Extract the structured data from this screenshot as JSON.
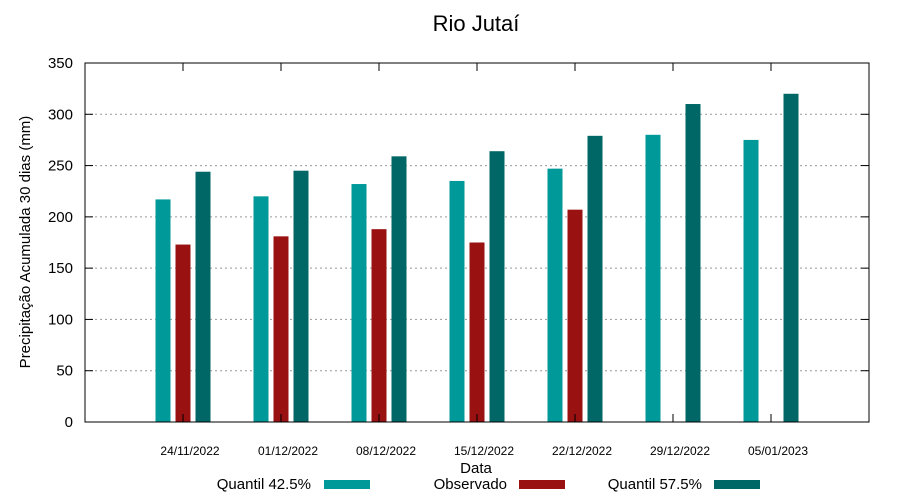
{
  "chart_data": {
    "type": "bar",
    "title": "Rio Jutaí",
    "xlabel": "Data",
    "ylabel": "Precipitação Acumulada 30 dias (mm)",
    "ylim": [
      0,
      350
    ],
    "yticks": [
      0,
      50,
      100,
      150,
      200,
      250,
      300,
      350
    ],
    "grid": true,
    "legend_position": "bottom",
    "categories": [
      "24/11/2022",
      "01/12/2022",
      "08/12/2022",
      "15/12/2022",
      "22/12/2022",
      "29/12/2022",
      "05/01/2023"
    ],
    "series": [
      {
        "name": "Quantil 42.5%",
        "color": "#009999",
        "values": [
          217,
          220,
          232,
          235,
          247,
          280,
          275
        ]
      },
      {
        "name": "Observado",
        "color": "#991111",
        "values": [
          173,
          181,
          188,
          175,
          207,
          null,
          null
        ]
      },
      {
        "name": "Quantil 57.5%",
        "color": "#006666",
        "values": [
          244,
          245,
          259,
          264,
          279,
          310,
          320
        ]
      }
    ]
  }
}
